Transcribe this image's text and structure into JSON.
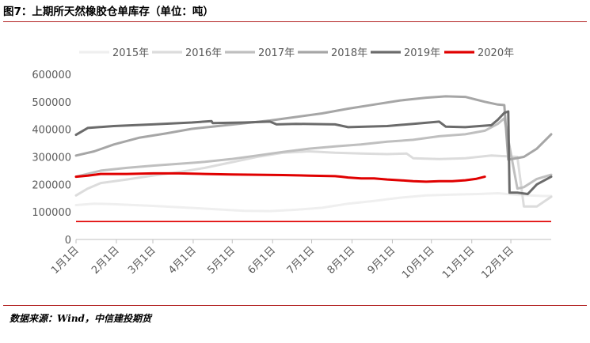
{
  "title": "图7：上期所天然橡胶仓单库存（单位：吨）",
  "source": "数据来源：Wind，中信建投期货",
  "colors": {
    "s2015": "#efefef",
    "s2016": "#dcdcdc",
    "s2017": "#bfbfbf",
    "s2018": "#a6a6a6",
    "s2019": "#6b6b6b",
    "s2020": "#e00000",
    "hline": "#e00000",
    "axis": "#bfbfbf",
    "tick": "#595959",
    "rule": "#b22222"
  },
  "chart_data": {
    "type": "line",
    "title": "",
    "xlabel": "",
    "ylabel": "",
    "ylim": [
      0,
      600000
    ],
    "yticks": [
      "0",
      "100000",
      "200000",
      "300000",
      "400000",
      "500000",
      "600000"
    ],
    "ytick_values": [
      0,
      100000,
      200000,
      300000,
      400000,
      500000,
      600000
    ],
    "grid": false,
    "legend_position": "top",
    "xlim_day_of_year": [
      1,
      366
    ],
    "x_tick_labels": [
      "1月1日",
      "2月1日",
      "3月1日",
      "4月1日",
      "5月1日",
      "6月1日",
      "7月1日",
      "8月1日",
      "9月1日",
      "10月1日",
      "11月1日",
      "12月1日"
    ],
    "x_tick_day_of_year": [
      1,
      32,
      60,
      91,
      121,
      152,
      182,
      213,
      244,
      274,
      305,
      335
    ],
    "hline_value": 65000,
    "series": [
      {
        "name": "2015年",
        "color_key": "s2015",
        "points": [
          [
            1,
            125000
          ],
          [
            15,
            130000
          ],
          [
            30,
            128000
          ],
          [
            60,
            122000
          ],
          [
            100,
            112000
          ],
          [
            130,
            104000
          ],
          [
            150,
            103000
          ],
          [
            170,
            108000
          ],
          [
            190,
            115000
          ],
          [
            210,
            130000
          ],
          [
            230,
            140000
          ],
          [
            250,
            152000
          ],
          [
            270,
            160000
          ],
          [
            290,
            163000
          ],
          [
            310,
            165000
          ],
          [
            325,
            168000
          ],
          [
            340,
            162000
          ],
          [
            360,
            158000
          ],
          [
            366,
            158000
          ]
        ]
      },
      {
        "name": "2016年",
        "color_key": "s2016",
        "points": [
          [
            1,
            160000
          ],
          [
            10,
            185000
          ],
          [
            20,
            205000
          ],
          [
            40,
            218000
          ],
          [
            60,
            232000
          ],
          [
            80,
            245000
          ],
          [
            100,
            260000
          ],
          [
            120,
            280000
          ],
          [
            140,
            300000
          ],
          [
            160,
            315000
          ],
          [
            180,
            320000
          ],
          [
            200,
            315000
          ],
          [
            220,
            312000
          ],
          [
            240,
            310000
          ],
          [
            255,
            312000
          ],
          [
            260,
            295000
          ],
          [
            280,
            292000
          ],
          [
            300,
            295000
          ],
          [
            320,
            305000
          ],
          [
            340,
            300000
          ],
          [
            345,
            120000
          ],
          [
            355,
            120000
          ],
          [
            366,
            155000
          ]
        ]
      },
      {
        "name": "2017年",
        "color_key": "s2017",
        "points": [
          [
            1,
            228000
          ],
          [
            20,
            250000
          ],
          [
            40,
            260000
          ],
          [
            60,
            268000
          ],
          [
            80,
            275000
          ],
          [
            100,
            282000
          ],
          [
            120,
            292000
          ],
          [
            140,
            305000
          ],
          [
            160,
            318000
          ],
          [
            180,
            330000
          ],
          [
            200,
            338000
          ],
          [
            220,
            345000
          ],
          [
            240,
            355000
          ],
          [
            260,
            362000
          ],
          [
            280,
            375000
          ],
          [
            300,
            382000
          ],
          [
            315,
            395000
          ],
          [
            325,
            420000
          ],
          [
            330,
            440000
          ],
          [
            340,
            185000
          ],
          [
            345,
            190000
          ],
          [
            355,
            220000
          ],
          [
            366,
            235000
          ]
        ]
      },
      {
        "name": "2018年",
        "color_key": "s2018",
        "points": [
          [
            1,
            305000
          ],
          [
            15,
            320000
          ],
          [
            30,
            345000
          ],
          [
            50,
            370000
          ],
          [
            70,
            385000
          ],
          [
            90,
            402000
          ],
          [
            110,
            412000
          ],
          [
            130,
            422000
          ],
          [
            150,
            432000
          ],
          [
            170,
            445000
          ],
          [
            190,
            458000
          ],
          [
            210,
            475000
          ],
          [
            230,
            490000
          ],
          [
            250,
            505000
          ],
          [
            270,
            515000
          ],
          [
            285,
            520000
          ],
          [
            300,
            518000
          ],
          [
            315,
            500000
          ],
          [
            325,
            490000
          ],
          [
            330,
            488000
          ],
          [
            333,
            290000
          ],
          [
            345,
            300000
          ],
          [
            355,
            330000
          ],
          [
            366,
            382000
          ]
        ]
      },
      {
        "name": "2019年",
        "color_key": "s2019",
        "points": [
          [
            1,
            380000
          ],
          [
            10,
            405000
          ],
          [
            30,
            412000
          ],
          [
            60,
            418000
          ],
          [
            90,
            425000
          ],
          [
            105,
            430000
          ],
          [
            106,
            423000
          ],
          [
            130,
            425000
          ],
          [
            150,
            428000
          ],
          [
            155,
            418000
          ],
          [
            170,
            420000
          ],
          [
            200,
            418000
          ],
          [
            210,
            408000
          ],
          [
            240,
            412000
          ],
          [
            260,
            420000
          ],
          [
            280,
            428000
          ],
          [
            285,
            410000
          ],
          [
            300,
            408000
          ],
          [
            320,
            415000
          ],
          [
            325,
            435000
          ],
          [
            330,
            460000
          ],
          [
            333,
            465000
          ],
          [
            334,
            170000
          ],
          [
            340,
            170000
          ],
          [
            348,
            165000
          ],
          [
            355,
            200000
          ],
          [
            366,
            228000
          ]
        ]
      },
      {
        "name": "2020年",
        "color_key": "s2020",
        "points": [
          [
            1,
            228000
          ],
          [
            10,
            232000
          ],
          [
            20,
            238000
          ],
          [
            40,
            238000
          ],
          [
            60,
            240000
          ],
          [
            80,
            240000
          ],
          [
            100,
            238000
          ],
          [
            120,
            236000
          ],
          [
            140,
            235000
          ],
          [
            160,
            234000
          ],
          [
            180,
            232000
          ],
          [
            200,
            230000
          ],
          [
            205,
            228000
          ],
          [
            210,
            225000
          ],
          [
            220,
            222000
          ],
          [
            230,
            222000
          ],
          [
            240,
            218000
          ],
          [
            250,
            215000
          ],
          [
            260,
            212000
          ],
          [
            270,
            210000
          ],
          [
            280,
            212000
          ],
          [
            290,
            212000
          ],
          [
            300,
            215000
          ],
          [
            308,
            220000
          ],
          [
            315,
            228000
          ]
        ]
      }
    ]
  }
}
